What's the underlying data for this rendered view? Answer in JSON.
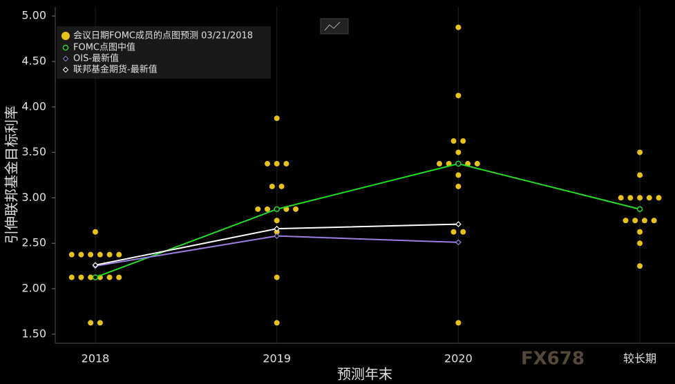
{
  "chart_data": {
    "type": "dotplot",
    "ylabel": "引伸联邦基金目标利率",
    "xlabel": "预测年末",
    "watermark": "FX678",
    "categories": [
      "2018",
      "2019",
      "2020",
      "较长期"
    ],
    "ylim": [
      1.4,
      5.1
    ],
    "yticks": [
      {
        "value": 1.5,
        "label": "1.50"
      },
      {
        "value": 2,
        "label": "2.00"
      },
      {
        "value": 2.5,
        "label": "2.50"
      },
      {
        "value": 3,
        "label": "3.00"
      },
      {
        "value": 3.5,
        "label": "3.50"
      },
      {
        "value": 4,
        "label": "4.00"
      },
      {
        "value": 4.5,
        "label": "4.50"
      },
      {
        "value": 5,
        "label": "5.00"
      }
    ],
    "legend": "top-left",
    "dots": {
      "name": "会议日期FOMC成员的点图预测 03/21/2018",
      "color": "#e8c21c",
      "values": [
        [
          2.625,
          2.375,
          2.375,
          2.375,
          2.375,
          2.375,
          2.375,
          2.125,
          2.125,
          2.125,
          2.125,
          2.125,
          2.125,
          1.625,
          1.625
        ],
        [
          3.875,
          3.375,
          3.375,
          3.375,
          3.125,
          3.125,
          2.875,
          2.875,
          2.875,
          2.875,
          2.875,
          2.75,
          2.625,
          2.125,
          1.625
        ],
        [
          4.875,
          4.125,
          3.625,
          3.625,
          3.5,
          3.375,
          3.375,
          3.375,
          3.375,
          3.375,
          3.25,
          3.125,
          2.625,
          2.625,
          1.625
        ],
        [
          3.5,
          3.25,
          3.0,
          3.0,
          3.0,
          3.0,
          3.0,
          2.75,
          2.75,
          2.75,
          2.75,
          2.625,
          2.5,
          2.25
        ]
      ]
    },
    "series": [
      {
        "name": "FOMC点图中值",
        "color": "#22dd22",
        "values": [
          2.125,
          2.875,
          3.375,
          2.875
        ]
      },
      {
        "name": "OIS-最新值",
        "color": "#9a7fe0",
        "values": [
          2.25,
          2.58,
          2.51,
          null
        ]
      },
      {
        "name": "联邦基金期货-最新值",
        "color": "#ffffff",
        "values": [
          2.26,
          2.66,
          2.71,
          null
        ]
      }
    ]
  }
}
